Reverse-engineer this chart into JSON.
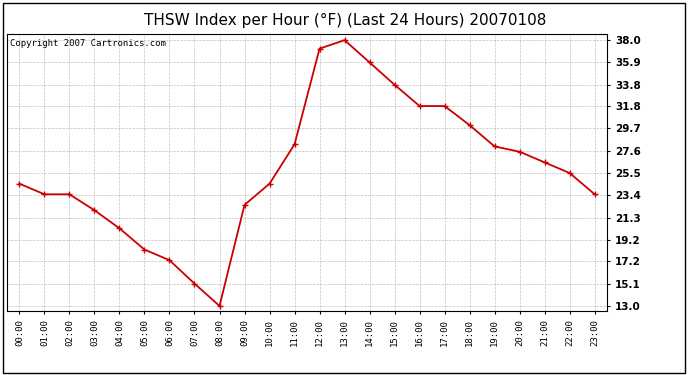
{
  "title": "THSW Index per Hour (°F) (Last 24 Hours) 20070108",
  "copyright": "Copyright 2007 Cartronics.com",
  "hours": [
    "00:00",
    "01:00",
    "02:00",
    "03:00",
    "04:00",
    "05:00",
    "06:00",
    "07:00",
    "08:00",
    "09:00",
    "10:00",
    "11:00",
    "12:00",
    "13:00",
    "14:00",
    "15:00",
    "16:00",
    "17:00",
    "18:00",
    "19:00",
    "20:00",
    "21:00",
    "22:00",
    "23:00"
  ],
  "x_values": [
    0,
    1,
    2,
    3,
    4,
    5,
    6,
    7,
    8,
    9,
    10,
    11,
    12,
    13,
    14,
    15,
    16,
    17,
    18,
    19,
    20,
    21,
    22,
    23
  ],
  "y_values": [
    24.5,
    23.5,
    23.5,
    22.0,
    20.3,
    18.3,
    17.3,
    15.1,
    13.0,
    22.5,
    24.5,
    28.2,
    37.2,
    38.0,
    35.9,
    33.8,
    31.8,
    31.8,
    30.0,
    28.0,
    27.5,
    26.5,
    25.5,
    23.5
  ],
  "yticks": [
    13.0,
    15.1,
    17.2,
    19.2,
    21.3,
    23.4,
    25.5,
    27.6,
    29.7,
    31.8,
    33.8,
    35.9,
    38.0
  ],
  "ylim": [
    12.5,
    38.6
  ],
  "line_color": "#cc0000",
  "marker_color": "#cc0000",
  "bg_color": "#ffffff",
  "grid_color": "#b0b0b0",
  "title_fontsize": 11,
  "copyright_fontsize": 6.5
}
